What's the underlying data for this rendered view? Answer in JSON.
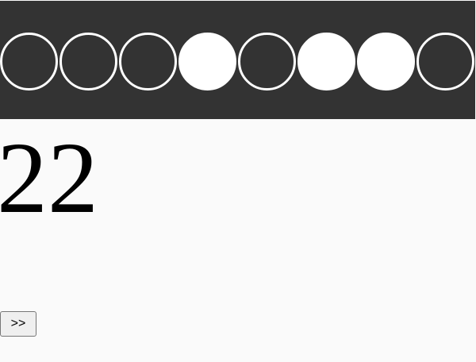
{
  "bits": [
    false,
    false,
    false,
    true,
    false,
    true,
    true,
    false
  ],
  "display": {
    "value": "22"
  },
  "next_button": {
    "label": ">>"
  },
  "colors": {
    "bar_bg": "#333333",
    "bit": "#ffffff",
    "page_bg": "#fafafa"
  }
}
